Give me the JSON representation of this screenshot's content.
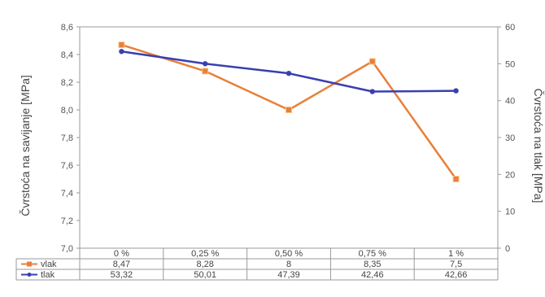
{
  "chart_data": {
    "type": "line",
    "categories": [
      "0 %",
      "0,25 %",
      "0,50 %",
      "0,75 %",
      "1 %"
    ],
    "series": [
      {
        "name": "vlak",
        "axis": "left",
        "color": "#e8803a",
        "values": [
          8.47,
          8.28,
          8,
          8.35,
          7.5
        ],
        "labels": [
          "8,47",
          "8,28",
          "8",
          "8,35",
          "7,5"
        ]
      },
      {
        "name": "tlak",
        "axis": "right",
        "color": "#3a3fb0",
        "values": [
          53.32,
          50.01,
          47.39,
          42.46,
          42.66
        ],
        "labels": [
          "53,32",
          "50,01",
          "47,39",
          "42,46",
          "42,66"
        ]
      }
    ],
    "ylabel": "Čvrstoća na savijanje [MPa]",
    "y2label": "Čvrstoća na tlak [MPa]",
    "ylim": [
      7.0,
      8.6
    ],
    "y2lim": [
      0,
      60
    ],
    "yticks": [
      "7,0",
      "7,2",
      "7,4",
      "7,6",
      "7,8",
      "8,0",
      "8,2",
      "8,4",
      "8,6"
    ],
    "y2ticks": [
      "0",
      "10",
      "20",
      "30",
      "40",
      "50",
      "60"
    ],
    "grid": false,
    "legend": "data-table"
  }
}
